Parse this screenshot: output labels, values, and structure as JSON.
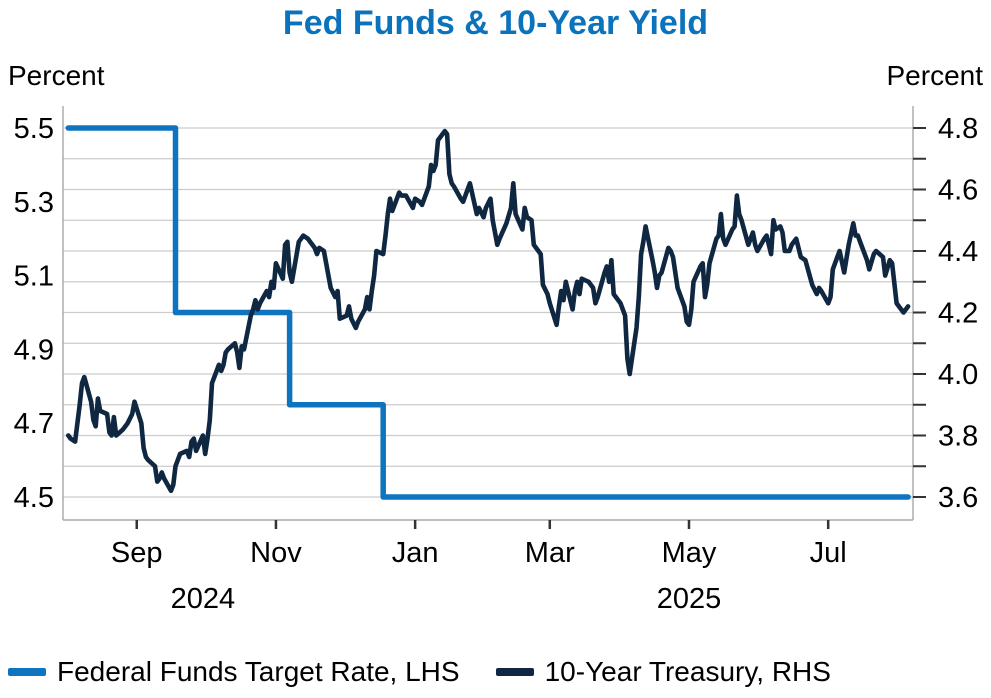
{
  "title": "Fed Funds & 10-Year Yield",
  "title_color": "#0b72bc",
  "left_axis": {
    "unit": "Percent",
    "tick_labels": [
      "5.5",
      "5.3",
      "5.1",
      "4.9",
      "4.7",
      "4.5"
    ]
  },
  "right_axis": {
    "unit": "Percent",
    "tick_labels": [
      "4.8",
      "4.6",
      "4.4",
      "4.2",
      "4.0",
      "3.8",
      "3.6"
    ]
  },
  "x_axis": {
    "month_ticks": [
      {
        "label": "Sep",
        "day": 31
      },
      {
        "label": "Nov",
        "day": 92
      },
      {
        "label": "Jan",
        "day": 153
      },
      {
        "label": "Mar",
        "day": 212
      },
      {
        "label": "May",
        "day": 273
      },
      {
        "label": "Jul",
        "day": 334
      }
    ],
    "year_labels": [
      {
        "label": "2024",
        "day": 60
      },
      {
        "label": "2025",
        "day": 273
      }
    ]
  },
  "legend": [
    {
      "label": "Federal Funds Target Rate, LHS",
      "color": "#0e74bf"
    },
    {
      "label": "10-Year Treasury, RHS",
      "color": "#102742"
    }
  ],
  "colors": {
    "fed_funds_line": "#0e74bf",
    "treasury_line": "#102742",
    "gridline": "#cccccc",
    "axis_frame": "#a8a8a8",
    "tick_mark": "#333333"
  },
  "chart_data": {
    "type": "line",
    "x_unit": "days since 2024-08-01",
    "left_ylim": [
      4.5,
      5.5
    ],
    "right_ylim": [
      3.6,
      4.8
    ],
    "grid_values_right": [
      3.6,
      3.7,
      3.8,
      3.9,
      4.0,
      4.1,
      4.2,
      4.3,
      4.4,
      4.5,
      4.6,
      4.7,
      4.8
    ],
    "legend_position": "bottom",
    "series": [
      {
        "name": "Federal Funds Target Rate",
        "axis": "left",
        "color": "#0e74bf",
        "width": 5.5,
        "points": [
          [
            1,
            5.5
          ],
          [
            48,
            5.5
          ],
          [
            48,
            5.0
          ],
          [
            98,
            5.0
          ],
          [
            98,
            4.75
          ],
          [
            139,
            4.75
          ],
          [
            139,
            4.5
          ],
          [
            369,
            4.5
          ]
        ]
      },
      {
        "name": "10-Year Treasury",
        "axis": "right",
        "color": "#102742",
        "width": 4.6,
        "points": [
          [
            1,
            3.8
          ],
          [
            2,
            3.79
          ],
          [
            4,
            3.78
          ],
          [
            6,
            3.9
          ],
          [
            7,
            3.97
          ],
          [
            8,
            3.99
          ],
          [
            11,
            3.91
          ],
          [
            12,
            3.85
          ],
          [
            13,
            3.83
          ],
          [
            14,
            3.92
          ],
          [
            15,
            3.88
          ],
          [
            18,
            3.87
          ],
          [
            19,
            3.81
          ],
          [
            20,
            3.8
          ],
          [
            21,
            3.86
          ],
          [
            22,
            3.8
          ],
          [
            25,
            3.82
          ],
          [
            27,
            3.84
          ],
          [
            29,
            3.87
          ],
          [
            30,
            3.91
          ],
          [
            33,
            3.84
          ],
          [
            34,
            3.76
          ],
          [
            35,
            3.73
          ],
          [
            36,
            3.72
          ],
          [
            39,
            3.7
          ],
          [
            40,
            3.65
          ],
          [
            41,
            3.66
          ],
          [
            42,
            3.68
          ],
          [
            43,
            3.66
          ],
          [
            46,
            3.62
          ],
          [
            47,
            3.64
          ],
          [
            48,
            3.7
          ],
          [
            49,
            3.72
          ],
          [
            50,
            3.74
          ],
          [
            53,
            3.75
          ],
          [
            54,
            3.73
          ],
          [
            55,
            3.78
          ],
          [
            56,
            3.79
          ],
          [
            57,
            3.75
          ],
          [
            60,
            3.8
          ],
          [
            61,
            3.74
          ],
          [
            62,
            3.79
          ],
          [
            63,
            3.85
          ],
          [
            64,
            3.97
          ],
          [
            67,
            4.03
          ],
          [
            68,
            4.01
          ],
          [
            69,
            4.03
          ],
          [
            70,
            4.07
          ],
          [
            71,
            4.08
          ],
          [
            74,
            4.1
          ],
          [
            75,
            4.07
          ],
          [
            76,
            4.02
          ],
          [
            77,
            4.09
          ],
          [
            78,
            4.08
          ],
          [
            81,
            4.19
          ],
          [
            82,
            4.21
          ],
          [
            83,
            4.24
          ],
          [
            84,
            4.21
          ],
          [
            85,
            4.23
          ],
          [
            88,
            4.27
          ],
          [
            89,
            4.25
          ],
          [
            90,
            4.3
          ],
          [
            91,
            4.28
          ],
          [
            92,
            4.36
          ],
          [
            95,
            4.31
          ],
          [
            96,
            4.42
          ],
          [
            97,
            4.43
          ],
          [
            98,
            4.33
          ],
          [
            99,
            4.3
          ],
          [
            102,
            4.43
          ],
          [
            104,
            4.45
          ],
          [
            106,
            4.44
          ],
          [
            109,
            4.41
          ],
          [
            110,
            4.39
          ],
          [
            111,
            4.41
          ],
          [
            113,
            4.4
          ],
          [
            116,
            4.28
          ],
          [
            118,
            4.25
          ],
          [
            119,
            4.27
          ],
          [
            120,
            4.18
          ],
          [
            123,
            4.19
          ],
          [
            124,
            4.22
          ],
          [
            125,
            4.18
          ],
          [
            127,
            4.15
          ],
          [
            128,
            4.17
          ],
          [
            131,
            4.21
          ],
          [
            132,
            4.25
          ],
          [
            133,
            4.21
          ],
          [
            134,
            4.27
          ],
          [
            135,
            4.32
          ],
          [
            136,
            4.4
          ],
          [
            139,
            4.39
          ],
          [
            140,
            4.45
          ],
          [
            141,
            4.52
          ],
          [
            142,
            4.57
          ],
          [
            143,
            4.53
          ],
          [
            146,
            4.59
          ],
          [
            147,
            4.58
          ],
          [
            149,
            4.58
          ],
          [
            152,
            4.54
          ],
          [
            153,
            4.57
          ],
          [
            155,
            4.56
          ],
          [
            156,
            4.55
          ],
          [
            159,
            4.61
          ],
          [
            160,
            4.68
          ],
          [
            161,
            4.66
          ],
          [
            162,
            4.68
          ],
          [
            163,
            4.76
          ],
          [
            166,
            4.79
          ],
          [
            167,
            4.78
          ],
          [
            168,
            4.65
          ],
          [
            169,
            4.62
          ],
          [
            170,
            4.61
          ],
          [
            173,
            4.57
          ],
          [
            174,
            4.56
          ],
          [
            176,
            4.6
          ],
          [
            177,
            4.62
          ],
          [
            180,
            4.52
          ],
          [
            181,
            4.54
          ],
          [
            183,
            4.51
          ],
          [
            184,
            4.54
          ],
          [
            186,
            4.57
          ],
          [
            187,
            4.5
          ],
          [
            189,
            4.42
          ],
          [
            190,
            4.44
          ],
          [
            193,
            4.49
          ],
          [
            195,
            4.54
          ],
          [
            196,
            4.62
          ],
          [
            197,
            4.52
          ],
          [
            200,
            4.47
          ],
          [
            201,
            4.54
          ],
          [
            202,
            4.51
          ],
          [
            204,
            4.5
          ],
          [
            205,
            4.42
          ],
          [
            208,
            4.39
          ],
          [
            209,
            4.29
          ],
          [
            211,
            4.26
          ],
          [
            212,
            4.23
          ],
          [
            215,
            4.16
          ],
          [
            216,
            4.22
          ],
          [
            217,
            4.27
          ],
          [
            218,
            4.24
          ],
          [
            219,
            4.3
          ],
          [
            222,
            4.21
          ],
          [
            223,
            4.27
          ],
          [
            224,
            4.3
          ],
          [
            225,
            4.26
          ],
          [
            226,
            4.31
          ],
          [
            229,
            4.3
          ],
          [
            231,
            4.28
          ],
          [
            232,
            4.23
          ],
          [
            233,
            4.25
          ],
          [
            236,
            4.33
          ],
          [
            237,
            4.35
          ],
          [
            238,
            4.3
          ],
          [
            239,
            4.37
          ],
          [
            240,
            4.26
          ],
          [
            243,
            4.23
          ],
          [
            245,
            4.19
          ],
          [
            246,
            4.05
          ],
          [
            247,
            4.0
          ],
          [
            250,
            4.15
          ],
          [
            251,
            4.25
          ],
          [
            252,
            4.39
          ],
          [
            253,
            4.43
          ],
          [
            254,
            4.48
          ],
          [
            257,
            4.37
          ],
          [
            258,
            4.33
          ],
          [
            259,
            4.28
          ],
          [
            260,
            4.32
          ],
          [
            261,
            4.33
          ],
          [
            264,
            4.41
          ],
          [
            265,
            4.4
          ],
          [
            266,
            4.38
          ],
          [
            268,
            4.28
          ],
          [
            271,
            4.22
          ],
          [
            272,
            4.17
          ],
          [
            273,
            4.16
          ],
          [
            274,
            4.21
          ],
          [
            275,
            4.3
          ],
          [
            278,
            4.35
          ],
          [
            279,
            4.36
          ],
          [
            280,
            4.25
          ],
          [
            281,
            4.29
          ],
          [
            282,
            4.36
          ],
          [
            285,
            4.44
          ],
          [
            286,
            4.45
          ],
          [
            287,
            4.52
          ],
          [
            288,
            4.44
          ],
          [
            289,
            4.42
          ],
          [
            292,
            4.47
          ],
          [
            293,
            4.48
          ],
          [
            294,
            4.58
          ],
          [
            295,
            4.52
          ],
          [
            296,
            4.5
          ],
          [
            299,
            4.42
          ],
          [
            300,
            4.44
          ],
          [
            301,
            4.46
          ],
          [
            302,
            4.42
          ],
          [
            303,
            4.4
          ],
          [
            306,
            4.44
          ],
          [
            307,
            4.45
          ],
          [
            309,
            4.39
          ],
          [
            310,
            4.5
          ],
          [
            311,
            4.47
          ],
          [
            313,
            4.48
          ],
          [
            314,
            4.46
          ],
          [
            315,
            4.4
          ],
          [
            317,
            4.4
          ],
          [
            318,
            4.42
          ],
          [
            320,
            4.44
          ],
          [
            322,
            4.38
          ],
          [
            324,
            4.37
          ],
          [
            327,
            4.29
          ],
          [
            329,
            4.26
          ],
          [
            330,
            4.28
          ],
          [
            331,
            4.27
          ],
          [
            334,
            4.23
          ],
          [
            335,
            4.25
          ],
          [
            336,
            4.34
          ],
          [
            338,
            4.38
          ],
          [
            339,
            4.4
          ],
          [
            341,
            4.33
          ],
          [
            343,
            4.42
          ],
          [
            345,
            4.49
          ],
          [
            346,
            4.45
          ],
          [
            347,
            4.45
          ],
          [
            348,
            4.43
          ],
          [
            351,
            4.37
          ],
          [
            352,
            4.34
          ],
          [
            354,
            4.39
          ],
          [
            355,
            4.4
          ],
          [
            358,
            4.38
          ],
          [
            359,
            4.32
          ],
          [
            361,
            4.37
          ],
          [
            362,
            4.36
          ],
          [
            364,
            4.23
          ],
          [
            367,
            4.2
          ],
          [
            369,
            4.22
          ]
        ]
      }
    ]
  }
}
